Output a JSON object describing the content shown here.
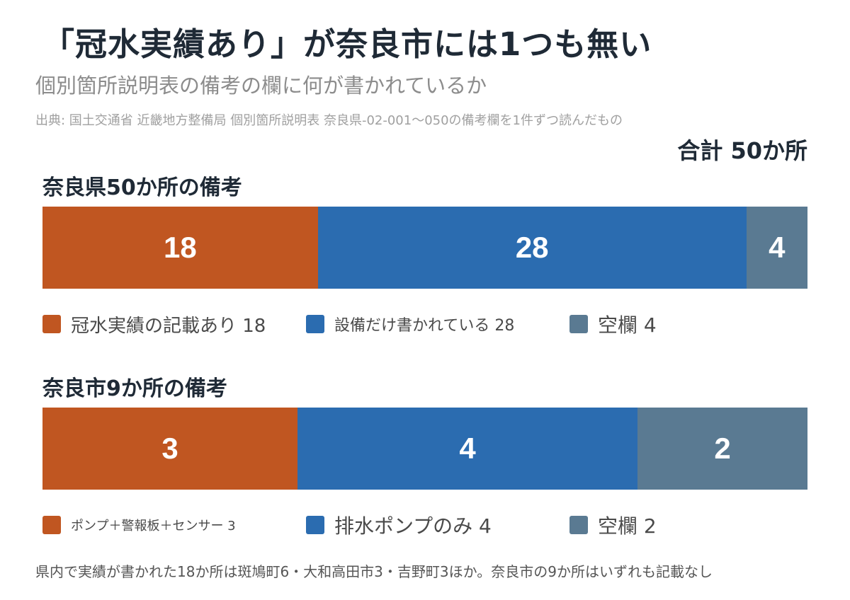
{
  "title": "「冠水実績あり」が奈良市には1つも無い",
  "subtitle": "個別箇所説明表の備考の欄に何が書かれているか",
  "source": "出典: 国土交通省 近畿地方整備局 個別箇所説明表 奈良県-02-001〜050の備考欄を1件ずつ読んだもの",
  "total_label": "合計 50か所",
  "footnote": "県内で実績が書かれた18か所は斑鳩町6・大和高田市3・吉野町3ほか。奈良市の9か所はいずれも記載なし",
  "colors": {
    "orange": "#c05621",
    "blue": "#2b6cb0",
    "slate": "#5a7a92"
  },
  "chart_data": [
    {
      "type": "bar",
      "orientation": "horizontal-stacked",
      "title": "奈良県50か所の備考",
      "total": 50,
      "series": [
        {
          "name": "冠水実績の記載あり",
          "value": 18,
          "label": "18",
          "legend": "冠水実績の記載あり 18",
          "color": "#c05621"
        },
        {
          "name": "設備だけ書かれている",
          "value": 28,
          "label": "28",
          "legend": "設備だけ書かれている 28",
          "color": "#2b6cb0"
        },
        {
          "name": "空欄",
          "value": 4,
          "label": "4",
          "legend": "空欄 4",
          "color": "#5a7a92"
        }
      ]
    },
    {
      "type": "bar",
      "orientation": "horizontal-stacked",
      "title": "奈良市9か所の備考",
      "total": 9,
      "series": [
        {
          "name": "ポンプ＋警報板＋センサー",
          "value": 3,
          "label": "3",
          "legend": "ポンプ＋警報板＋センサー 3",
          "color": "#c05621"
        },
        {
          "name": "排水ポンプのみ",
          "value": 4,
          "label": "4",
          "legend": "排水ポンプのみ 4",
          "color": "#2b6cb0"
        },
        {
          "name": "空欄",
          "value": 2,
          "label": "2",
          "legend": "空欄 2",
          "color": "#5a7a92"
        }
      ]
    }
  ]
}
